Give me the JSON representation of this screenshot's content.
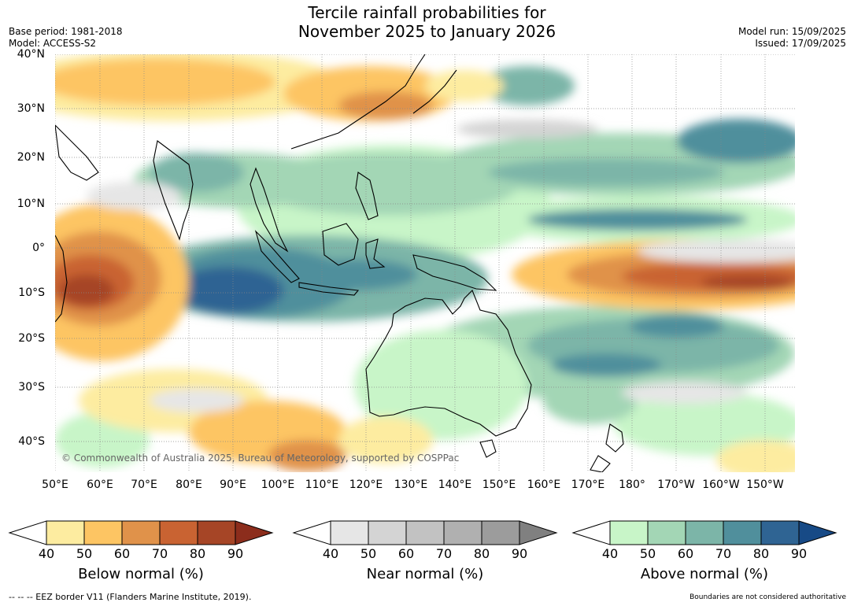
{
  "title_line1": "Tercile rainfall probabilities for",
  "title_line2": "November 2025 to January 2026",
  "base_period": "Base period: 1981-2018",
  "model": "Model: ACCESS-S2",
  "model_run": "Model run: 15/09/2025",
  "issued": "Issued: 17/09/2025",
  "copyright": "© Commonwealth of Australia 2025, Bureau of Meteorology, supported by COSPPac",
  "lat_labels": [
    "40°N",
    "30°N",
    "20°N",
    "10°N",
    "0°",
    "10°S",
    "20°S",
    "30°S",
    "40°S"
  ],
  "lon_labels": [
    "50°E",
    "60°E",
    "70°E",
    "80°E",
    "90°E",
    "100°E",
    "110°E",
    "120°E",
    "130°E",
    "140°E",
    "150°E",
    "160°E",
    "170°E",
    "180°",
    "170°W",
    "160°W",
    "150°W"
  ],
  "colorbars": [
    {
      "title": "Below normal (%)",
      "ticks": [
        "40",
        "50",
        "60",
        "70",
        "80",
        "90"
      ],
      "colors": [
        "#ffffff",
        "#fdeca0",
        "#fdc563",
        "#e0924a",
        "#c96332",
        "#a64526",
        "#8c2d1c"
      ]
    },
    {
      "title": "Near normal (%)",
      "ticks": [
        "40",
        "50",
        "60",
        "70",
        "80",
        "90"
      ],
      "colors": [
        "#ffffff",
        "#e6e6e6",
        "#d4d4d4",
        "#c2c2c2",
        "#b0b0b0",
        "#9c9c9c",
        "#808080"
      ]
    },
    {
      "title": "Above normal (%)",
      "ticks": [
        "40",
        "50",
        "60",
        "70",
        "80",
        "90"
      ],
      "colors": [
        "#ffffff",
        "#c8f5c8",
        "#a3d6b5",
        "#7cb5a8",
        "#508f9c",
        "#2f6493",
        "#174a86"
      ]
    }
  ],
  "eez_note": "--  --  -- EEZ border V11 (Flanders Marine Institute, 2019).",
  "boundaries_note": "Boundaries are not considered authoritative"
}
